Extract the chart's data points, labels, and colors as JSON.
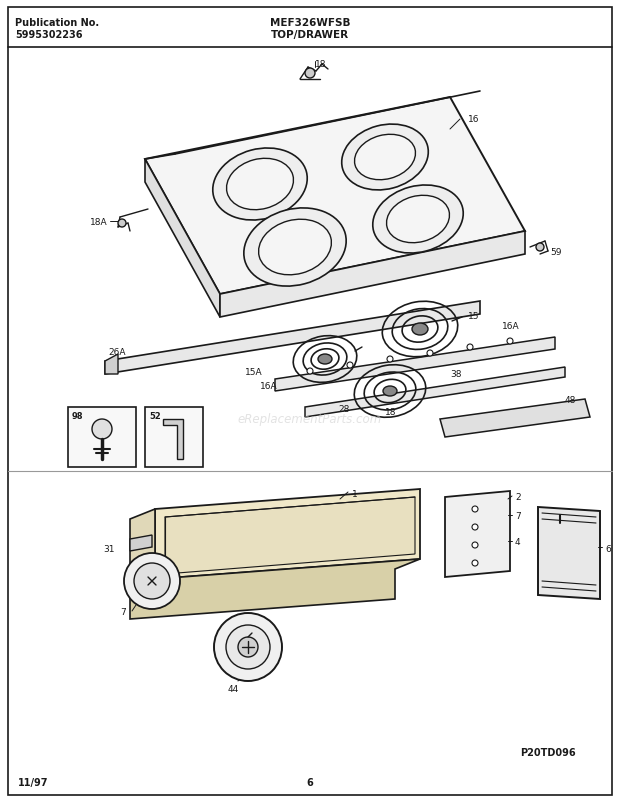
{
  "title_left_line1": "Publication No.",
  "title_left_line2": "5995302236",
  "title_center": "MEF326WFSB",
  "subtitle": "TOP/DRAWER",
  "footer_left": "11/97",
  "footer_center": "6",
  "footer_right": "P20TD096",
  "bg_color": "#ffffff",
  "lc": "#1a1a1a",
  "watermark": "eReplacementParts.com",
  "fig_w": 6.2,
  "fig_h": 8.04,
  "dpi": 100
}
